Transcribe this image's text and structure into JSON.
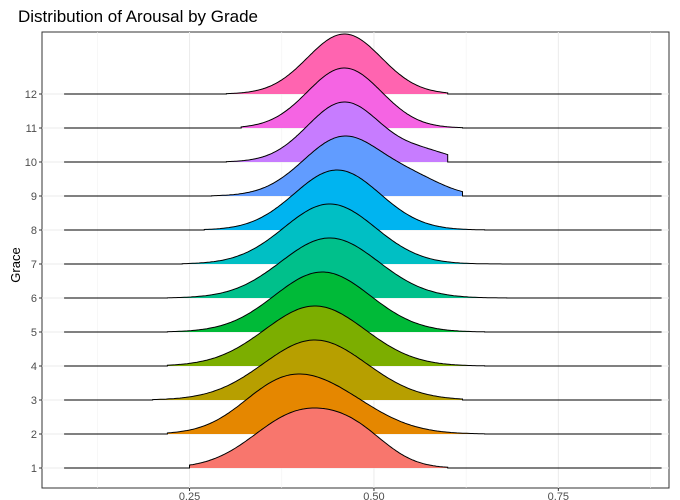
{
  "chart_data": {
    "type": "ridgeline",
    "title": "Distribution of Arousal by Grade",
    "xlabel": "",
    "ylabel": "Grace",
    "xlim": [
      0.05,
      0.9
    ],
    "x_ticks": [
      0.25,
      0.5,
      0.75
    ],
    "x_tick_labels": [
      "0.25",
      "0.50",
      "0.75"
    ],
    "grid": true,
    "legend": "none",
    "baseline_range": [
      0.08,
      0.89
    ],
    "series": [
      {
        "name": "1",
        "color": "#F8766D",
        "range": [
          0.08,
          0.89
        ],
        "fill_range": [
          0.25,
          0.6
        ],
        "peak": 0.4,
        "spread": 0.062,
        "side_peak": 0.48,
        "side_height": 0.4
      },
      {
        "name": "2",
        "color": "#E58700",
        "range": [
          0.08,
          0.89
        ],
        "fill_range": [
          0.22,
          0.65
        ],
        "peak": 0.42,
        "spread": 0.07,
        "side_peak": 0.36,
        "side_height": 0.35
      },
      {
        "name": "3",
        "color": "#B79F00",
        "range": [
          0.08,
          0.89
        ],
        "fill_range": [
          0.2,
          0.62
        ],
        "peak": 0.42,
        "spread": 0.07,
        "side_peak": null,
        "side_height": 0
      },
      {
        "name": "4",
        "color": "#7CAE00",
        "range": [
          0.08,
          0.89
        ],
        "fill_range": [
          0.22,
          0.65
        ],
        "peak": 0.42,
        "spread": 0.068,
        "side_peak": null,
        "side_height": 0
      },
      {
        "name": "5",
        "color": "#00BA38",
        "range": [
          0.08,
          0.89
        ],
        "fill_range": [
          0.22,
          0.65
        ],
        "peak": 0.43,
        "spread": 0.065,
        "side_peak": null,
        "side_height": 0
      },
      {
        "name": "6",
        "color": "#00C08B",
        "range": [
          0.08,
          0.89
        ],
        "fill_range": [
          0.22,
          0.68
        ],
        "peak": 0.44,
        "spread": 0.066,
        "side_peak": null,
        "side_height": 0
      },
      {
        "name": "7",
        "color": "#00BFC4",
        "range": [
          0.08,
          0.89
        ],
        "fill_range": [
          0.24,
          0.7
        ],
        "peak": 0.44,
        "spread": 0.062,
        "side_peak": null,
        "side_height": 0
      },
      {
        "name": "8",
        "color": "#00B4F0",
        "range": [
          0.08,
          0.89
        ],
        "fill_range": [
          0.27,
          0.65
        ],
        "peak": 0.45,
        "spread": 0.058,
        "side_peak": null,
        "side_height": 0
      },
      {
        "name": "9",
        "color": "#619CFF",
        "range": [
          0.08,
          0.89
        ],
        "fill_range": [
          0.28,
          0.62
        ],
        "peak": 0.46,
        "spread": 0.055,
        "side_peak": 0.56,
        "side_height": 0.2
      },
      {
        "name": "10",
        "color": "#C77CFF",
        "range": [
          0.08,
          0.89
        ],
        "fill_range": [
          0.3,
          0.6
        ],
        "peak": 0.46,
        "spread": 0.05,
        "side_peak": 0.57,
        "side_height": 0.15
      },
      {
        "name": "11",
        "color": "#F564E3",
        "range": [
          0.08,
          0.89
        ],
        "fill_range": [
          0.32,
          0.62
        ],
        "peak": 0.46,
        "spread": 0.05,
        "side_peak": null,
        "side_height": 0
      },
      {
        "name": "12",
        "color": "#FF64B0",
        "range": [
          0.08,
          0.89
        ],
        "fill_range": [
          0.3,
          0.6
        ],
        "peak": 0.46,
        "spread": 0.05,
        "side_peak": null,
        "side_height": 0
      }
    ]
  }
}
